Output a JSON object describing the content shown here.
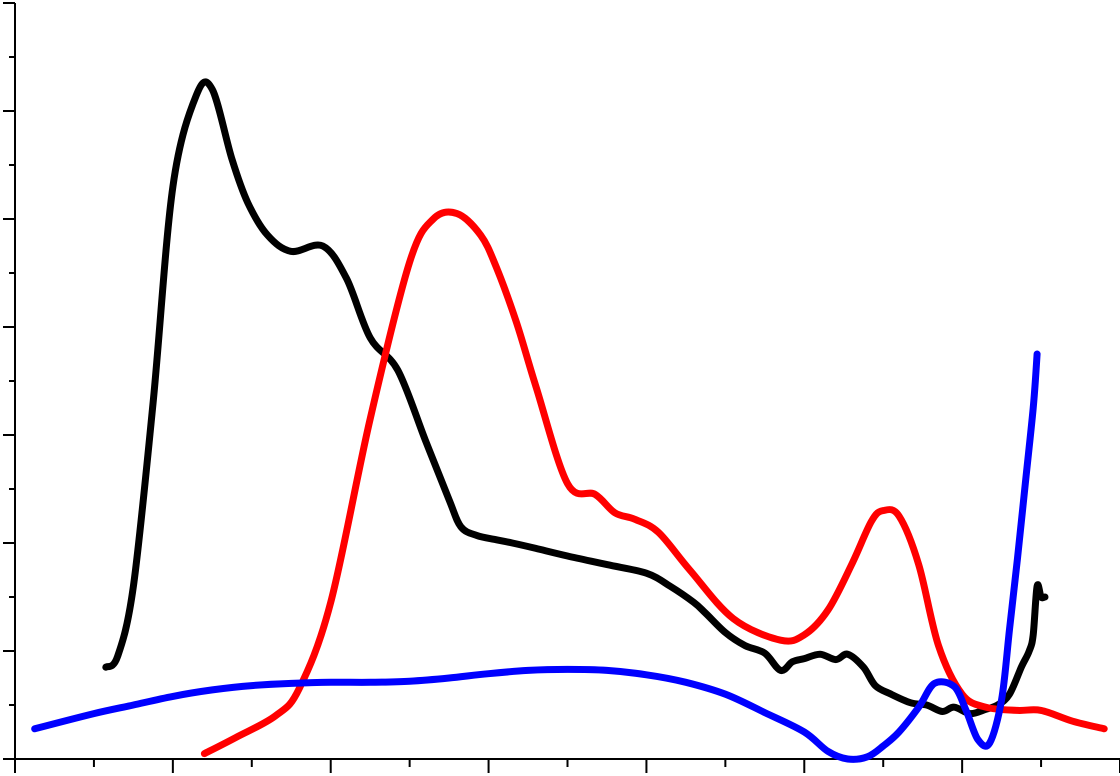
{
  "chart_data": {
    "type": "line",
    "title": "",
    "xlabel": "",
    "ylabel": "",
    "xlim": [
      0,
      14
    ],
    "ylim": [
      0,
      7
    ],
    "grid": false,
    "legend": "none",
    "x_major_ticks": [
      0,
      2,
      4,
      6,
      8,
      10,
      12,
      14
    ],
    "x_minor_ticks": [
      1,
      3,
      5,
      7,
      9,
      11,
      13
    ],
    "y_major_ticks": [
      0,
      1,
      2,
      3,
      4,
      5,
      6,
      7
    ],
    "y_minor_ticks": [
      0.5,
      1.5,
      2.5,
      3.5,
      4.5,
      5.5,
      6.5
    ],
    "series": [
      {
        "color": "#000000",
        "x": [
          1.15,
          1.3,
          1.5,
          1.75,
          2.0,
          2.3,
          2.5,
          2.75,
          2.95,
          3.2,
          3.5,
          3.9,
          4.2,
          4.5,
          4.85,
          5.2,
          5.5,
          5.65,
          5.85,
          6.1,
          6.3,
          6.6,
          7.0,
          7.5,
          8.0,
          8.3,
          8.6,
          8.75,
          9.0,
          9.25,
          9.5,
          9.7,
          9.85,
          10.0,
          10.2,
          10.4,
          10.55,
          10.75,
          10.9,
          11.1,
          11.35,
          11.55,
          11.75,
          11.9,
          12.1,
          12.3,
          12.45,
          12.6,
          12.75,
          12.85,
          12.9,
          12.95,
          13.0,
          13.05
        ],
        "y": [
          0.85,
          0.95,
          1.6,
          3.3,
          5.3,
          6.15,
          6.2,
          5.55,
          5.15,
          4.85,
          4.7,
          4.75,
          4.45,
          3.9,
          3.6,
          2.95,
          2.4,
          2.15,
          2.07,
          2.03,
          2.0,
          1.95,
          1.88,
          1.8,
          1.72,
          1.6,
          1.45,
          1.35,
          1.17,
          1.05,
          0.98,
          0.82,
          0.9,
          0.93,
          0.97,
          0.92,
          0.97,
          0.85,
          0.68,
          0.6,
          0.52,
          0.5,
          0.44,
          0.48,
          0.42,
          0.46,
          0.5,
          0.6,
          0.85,
          1.0,
          1.15,
          1.6,
          1.5,
          1.5
        ]
      },
      {
        "color": "#ff0000",
        "x": [
          2.4,
          2.8,
          3.3,
          3.6,
          4.0,
          4.5,
          5.0,
          5.3,
          5.6,
          5.9,
          6.1,
          6.35,
          6.6,
          7.0,
          7.35,
          7.6,
          7.85,
          8.15,
          8.55,
          9.1,
          9.7,
          10.0,
          10.3,
          10.6,
          10.85,
          11.0,
          11.2,
          11.45,
          11.7,
          12.0,
          12.3,
          12.7,
          13.0,
          13.4,
          13.8
        ],
        "y": [
          0.05,
          0.2,
          0.4,
          0.65,
          1.45,
          3.15,
          4.6,
          5.0,
          5.05,
          4.85,
          4.55,
          4.05,
          3.45,
          2.55,
          2.45,
          2.28,
          2.22,
          2.1,
          1.75,
          1.3,
          1.1,
          1.15,
          1.38,
          1.8,
          2.2,
          2.3,
          2.25,
          1.8,
          1.05,
          0.6,
          0.48,
          0.45,
          0.45,
          0.35,
          0.28
        ]
      },
      {
        "color": "#0000ff",
        "x": [
          0.25,
          1.0,
          1.5,
          2.0,
          2.5,
          3.0,
          3.5,
          4.0,
          4.5,
          5.0,
          5.5,
          6.0,
          6.5,
          7.0,
          7.5,
          8.0,
          8.5,
          9.0,
          9.5,
          10.0,
          10.3,
          10.55,
          10.8,
          11.0,
          11.2,
          11.45,
          11.65,
          11.9,
          12.05,
          12.2,
          12.35,
          12.5,
          12.6,
          12.7,
          12.8,
          12.9,
          12.95
        ],
        "y": [
          0.28,
          0.42,
          0.5,
          0.58,
          0.64,
          0.68,
          0.7,
          0.71,
          0.71,
          0.72,
          0.75,
          0.79,
          0.82,
          0.83,
          0.82,
          0.78,
          0.71,
          0.6,
          0.43,
          0.25,
          0.07,
          0.0,
          0.02,
          0.12,
          0.25,
          0.48,
          0.7,
          0.67,
          0.45,
          0.18,
          0.15,
          0.55,
          1.2,
          1.85,
          2.55,
          3.25,
          3.75
        ]
      }
    ]
  }
}
